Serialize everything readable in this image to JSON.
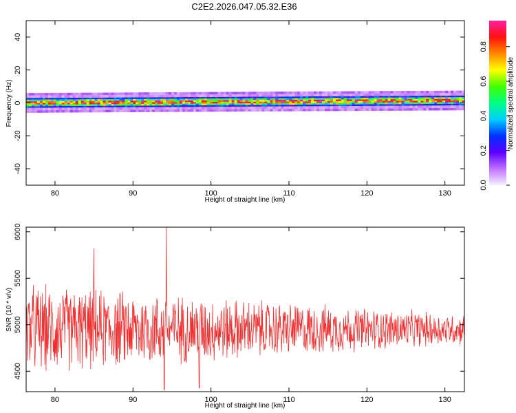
{
  "title": "C2E2.2026.047.05.32.E36",
  "chart_data": [
    {
      "type": "heatmap",
      "xlabel": "Height of straight line (km)",
      "ylabel": "Frequency (Hz)",
      "xlim": [
        76.3,
        132.5
      ],
      "ylim": [
        -50,
        50
      ],
      "xticks": [
        80,
        90,
        100,
        110,
        120,
        130
      ],
      "yticks": [
        -40,
        -20,
        0,
        20,
        40
      ],
      "band": {
        "center_hz": 0,
        "halfwidth_hz": 4,
        "x_start": 76.3,
        "x_end": 132.5
      },
      "colorbar": {
        "label": "Normalized spectral amplitude",
        "ticks": [
          0.0,
          0.2,
          0.4,
          0.6,
          0.8
        ],
        "range": [
          0,
          0.95
        ],
        "colors": [
          "#f5f0ff",
          "#c070ff",
          "#5a00ff",
          "#0030ff",
          "#00d0ff",
          "#00ff80",
          "#40ff00",
          "#ffff00",
          "#ff8800",
          "#ff1010",
          "#ff20a0"
        ]
      }
    },
    {
      "type": "line",
      "xlabel": "Height of straight line (km)",
      "ylabel": "SNR (10 * v/v)",
      "xlim": [
        76.3,
        132.5
      ],
      "ylim": [
        4280,
        6050
      ],
      "xticks": [
        80,
        90,
        100,
        110,
        120,
        130
      ],
      "yticks": [
        4500,
        5000,
        5500,
        6000
      ],
      "color": "#f03030",
      "mean": 4950,
      "amplitude_start": 450,
      "amplitude_end": 150,
      "notable_points": [
        {
          "x": 94.3,
          "y": 6050
        },
        {
          "x": 94.0,
          "y": 4300
        },
        {
          "x": 85.0,
          "y": 5820
        },
        {
          "x": 98.5,
          "y": 4320
        }
      ]
    }
  ]
}
